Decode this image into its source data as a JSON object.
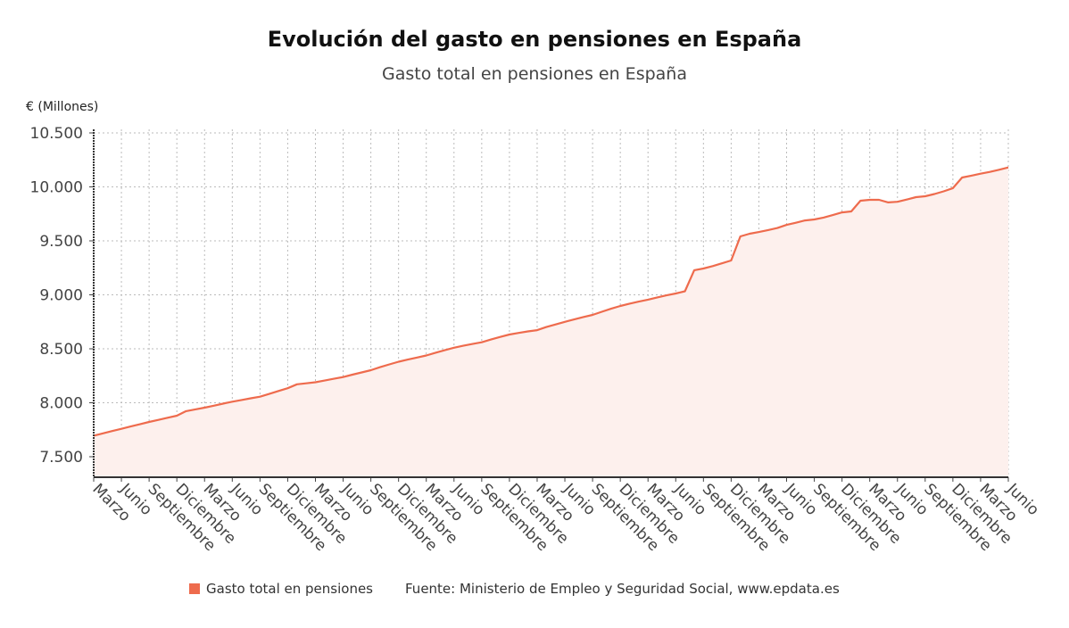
{
  "chart_data": {
    "type": "area",
    "title": "Evolución del gasto en pensiones en España",
    "subtitle": "Gasto total en pensiones en España",
    "ylabel": "€ (Millones)",
    "xlabel": "",
    "ylim": [
      7310,
      10533
    ],
    "yticks": [
      7500,
      8000,
      8500,
      9000,
      9500,
      10000,
      10500
    ],
    "ytick_labels": [
      "7.500",
      "8.000",
      "8.500",
      "9.000",
      "9.500",
      "10.000",
      "10.500"
    ],
    "x_tick_labels": [
      "Marzo",
      "Junio",
      "Septiembre",
      "Diciembre",
      "Marzo",
      "Junio",
      "Septiembre",
      "Diciembre",
      "Marzo",
      "Junio",
      "Septiembre",
      "Diciembre",
      "Marzo",
      "Junio",
      "Septiembre",
      "Diciembre",
      "Marzo",
      "Junio",
      "Septiembre",
      "Diciembre",
      "Marzo",
      "Junio",
      "Septiembre",
      "Diciembre",
      "Marzo",
      "Junio",
      "Septiembre",
      "Diciembre",
      "Marzo",
      "Junio",
      "Septiembre",
      "Diciembre",
      "Marzo",
      "Junio"
    ],
    "x_tick_every_months": 3,
    "grid": true,
    "legend_placement": "bottom",
    "series": [
      {
        "name": "Gasto total en pensiones",
        "color": "#ee6b4d",
        "fill": "#fdf0ed",
        "values": [
          7695,
          7717,
          7738,
          7759,
          7780,
          7801,
          7822,
          7841,
          7861,
          7880,
          7922,
          7939,
          7955,
          7973,
          7992,
          8010,
          8026,
          8041,
          8056,
          8082,
          8109,
          8135,
          8171,
          8180,
          8190,
          8206,
          8222,
          8238,
          8260,
          8281,
          8302,
          8330,
          8355,
          8380,
          8400,
          8419,
          8438,
          8464,
          8487,
          8510,
          8528,
          8545,
          8560,
          8586,
          8610,
          8632,
          8647,
          8661,
          8673,
          8702,
          8726,
          8750,
          8772,
          8794,
          8814,
          8843,
          8871,
          8897,
          8918,
          8937,
          8955,
          8976,
          8995,
          9012,
          9033,
          9228,
          9244,
          9266,
          9292,
          9318,
          9541,
          9566,
          9582,
          9600,
          9619,
          9648,
          9668,
          9689,
          9698,
          9716,
          9739,
          9764,
          9773,
          9872,
          9880,
          9880,
          9856,
          9862,
          9883,
          9905,
          9913,
          9934,
          9959,
          9988,
          10087,
          10104,
          10122,
          10139,
          10159,
          10180
        ]
      }
    ]
  },
  "footer": {
    "legend_label": "Gasto total en pensiones",
    "source": "Fuente: Ministerio de Empleo y Seguridad Social, www.epdata.es"
  }
}
